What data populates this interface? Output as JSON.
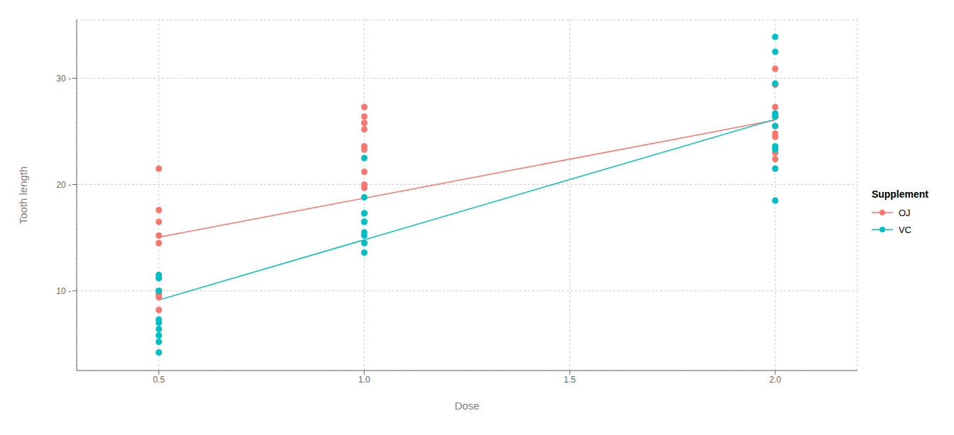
{
  "chart_data": {
    "type": "scatter",
    "title": "",
    "xlabel": "Dose",
    "ylabel": "Tooth length",
    "grid": true,
    "legend": "right",
    "legend_title": "Supplement",
    "xlim": [
      0.3,
      2.2
    ],
    "xticks": [
      0.5,
      {
        "value": 1.0,
        "label": "1.0"
      },
      1.5,
      {
        "value": 2.0,
        "label": "2.0"
      }
    ],
    "ylim": [
      2.5,
      35.5
    ],
    "yticks": [
      {
        "value": 10,
        "label": "10 -"
      },
      {
        "value": 20,
        "label": "20 -"
      },
      {
        "value": 30,
        "label": "30 -"
      }
    ],
    "series": [
      {
        "name": "OJ",
        "color": "#F8766D",
        "marker": "circle",
        "x": [
          0.5,
          0.5,
          0.5,
          0.5,
          0.5,
          0.5,
          0.5,
          0.5,
          0.5,
          0.5,
          1.0,
          1.0,
          1.0,
          1.0,
          1.0,
          1.0,
          1.0,
          1.0,
          1.0,
          1.0,
          2.0,
          2.0,
          2.0,
          2.0,
          2.0,
          2.0,
          2.0,
          2.0,
          2.0,
          2.0
        ],
        "values": [
          15.2,
          21.5,
          17.6,
          9.7,
          14.5,
          10.0,
          8.2,
          9.4,
          16.5,
          9.7,
          19.7,
          23.3,
          23.6,
          26.4,
          20.0,
          25.2,
          25.8,
          21.2,
          14.5,
          27.3,
          25.5,
          26.4,
          22.4,
          24.5,
          24.8,
          30.9,
          26.4,
          27.3,
          29.4,
          23.0
        ],
        "line": {
          "x": [
            0.5,
            2.0
          ],
          "values": [
            15.05,
            26.06
          ]
        }
      },
      {
        "name": "VC",
        "color": "#00BFC4",
        "marker": "circle",
        "x": [
          0.5,
          0.5,
          0.5,
          0.5,
          0.5,
          0.5,
          0.5,
          0.5,
          0.5,
          0.5,
          1.0,
          1.0,
          1.0,
          1.0,
          1.0,
          1.0,
          1.0,
          1.0,
          1.0,
          1.0,
          2.0,
          2.0,
          2.0,
          2.0,
          2.0,
          2.0,
          2.0,
          2.0,
          2.0,
          2.0
        ],
        "values": [
          4.2,
          11.5,
          7.3,
          5.8,
          6.4,
          10.0,
          11.2,
          11.2,
          5.2,
          7.0,
          16.5,
          16.5,
          15.2,
          17.3,
          22.5,
          17.3,
          13.6,
          14.5,
          18.8,
          15.5,
          23.6,
          18.5,
          33.9,
          25.5,
          26.4,
          32.5,
          26.7,
          21.5,
          23.3,
          29.5
        ],
        "line": {
          "x": [
            0.5,
            2.0
          ],
          "values": [
            9.14,
            26.14
          ]
        }
      }
    ]
  }
}
